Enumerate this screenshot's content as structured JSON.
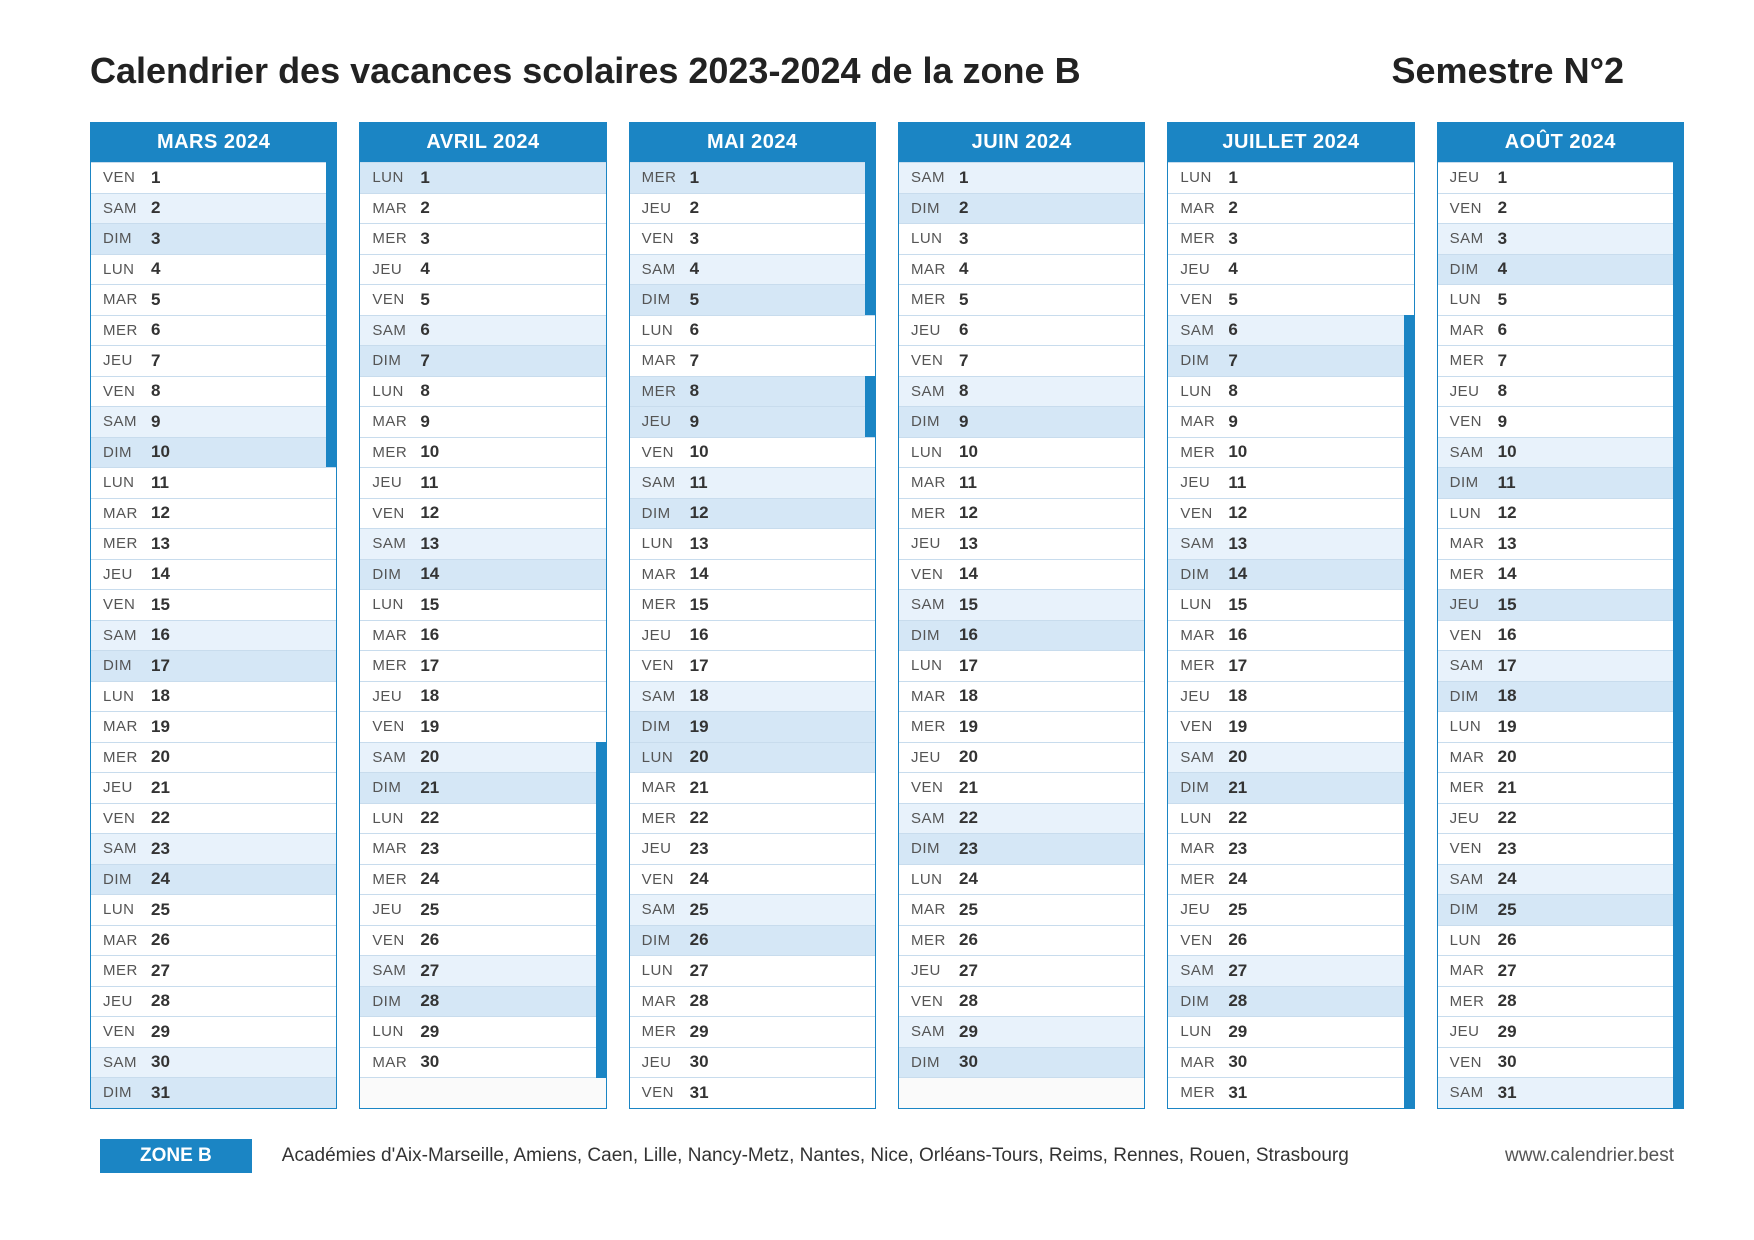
{
  "colors": {
    "accent": "#1b85c4",
    "sat_bg": "#e8f2fb",
    "sun_bg": "#d5e7f6",
    "border": "#c8dced",
    "text": "#333333",
    "wd_text": "#555555"
  },
  "header": {
    "title": "Calendrier des vacances scolaires 2023-2024 de la zone B",
    "semester": "Semestre N°2"
  },
  "footer": {
    "zone_label": "ZONE B",
    "academies": "Académies d'Aix-Marseille, Amiens, Caen, Lille, Nancy-Metz, Nantes, Nice, Orléans-Tours, Reims, Rennes, Rouen, Strasbourg",
    "site": "www.calendrier.best"
  },
  "max_days": 31,
  "months": [
    {
      "name": "MARS 2024",
      "days": [
        {
          "wd": "VEN",
          "n": 1,
          "m": true
        },
        {
          "wd": "SAM",
          "n": 2,
          "m": true
        },
        {
          "wd": "DIM",
          "n": 3,
          "m": true
        },
        {
          "wd": "LUN",
          "n": 4,
          "m": true
        },
        {
          "wd": "MAR",
          "n": 5,
          "m": true
        },
        {
          "wd": "MER",
          "n": 6,
          "m": true
        },
        {
          "wd": "JEU",
          "n": 7,
          "m": true
        },
        {
          "wd": "VEN",
          "n": 8,
          "m": true
        },
        {
          "wd": "SAM",
          "n": 9,
          "m": true
        },
        {
          "wd": "DIM",
          "n": 10,
          "m": true
        },
        {
          "wd": "LUN",
          "n": 11
        },
        {
          "wd": "MAR",
          "n": 12
        },
        {
          "wd": "MER",
          "n": 13
        },
        {
          "wd": "JEU",
          "n": 14
        },
        {
          "wd": "VEN",
          "n": 15
        },
        {
          "wd": "SAM",
          "n": 16
        },
        {
          "wd": "DIM",
          "n": 17
        },
        {
          "wd": "LUN",
          "n": 18
        },
        {
          "wd": "MAR",
          "n": 19
        },
        {
          "wd": "MER",
          "n": 20
        },
        {
          "wd": "JEU",
          "n": 21
        },
        {
          "wd": "VEN",
          "n": 22
        },
        {
          "wd": "SAM",
          "n": 23
        },
        {
          "wd": "DIM",
          "n": 24
        },
        {
          "wd": "LUN",
          "n": 25
        },
        {
          "wd": "MAR",
          "n": 26
        },
        {
          "wd": "MER",
          "n": 27
        },
        {
          "wd": "JEU",
          "n": 28
        },
        {
          "wd": "VEN",
          "n": 29
        },
        {
          "wd": "SAM",
          "n": 30
        },
        {
          "wd": "DIM",
          "n": 31
        }
      ]
    },
    {
      "name": "AVRIL 2024",
      "days": [
        {
          "wd": "LUN",
          "n": 1,
          "hol": true
        },
        {
          "wd": "MAR",
          "n": 2
        },
        {
          "wd": "MER",
          "n": 3
        },
        {
          "wd": "JEU",
          "n": 4
        },
        {
          "wd": "VEN",
          "n": 5
        },
        {
          "wd": "SAM",
          "n": 6
        },
        {
          "wd": "DIM",
          "n": 7
        },
        {
          "wd": "LUN",
          "n": 8
        },
        {
          "wd": "MAR",
          "n": 9
        },
        {
          "wd": "MER",
          "n": 10
        },
        {
          "wd": "JEU",
          "n": 11
        },
        {
          "wd": "VEN",
          "n": 12
        },
        {
          "wd": "SAM",
          "n": 13
        },
        {
          "wd": "DIM",
          "n": 14
        },
        {
          "wd": "LUN",
          "n": 15
        },
        {
          "wd": "MAR",
          "n": 16
        },
        {
          "wd": "MER",
          "n": 17
        },
        {
          "wd": "JEU",
          "n": 18
        },
        {
          "wd": "VEN",
          "n": 19
        },
        {
          "wd": "SAM",
          "n": 20,
          "m": true
        },
        {
          "wd": "DIM",
          "n": 21,
          "m": true
        },
        {
          "wd": "LUN",
          "n": 22,
          "m": true
        },
        {
          "wd": "MAR",
          "n": 23,
          "m": true
        },
        {
          "wd": "MER",
          "n": 24,
          "m": true
        },
        {
          "wd": "JEU",
          "n": 25,
          "m": true
        },
        {
          "wd": "VEN",
          "n": 26,
          "m": true
        },
        {
          "wd": "SAM",
          "n": 27,
          "m": true
        },
        {
          "wd": "DIM",
          "n": 28,
          "m": true
        },
        {
          "wd": "LUN",
          "n": 29,
          "m": true
        },
        {
          "wd": "MAR",
          "n": 30,
          "m": true
        }
      ]
    },
    {
      "name": "MAI 2024",
      "days": [
        {
          "wd": "MER",
          "n": 1,
          "hol": true,
          "m": true
        },
        {
          "wd": "JEU",
          "n": 2,
          "m": true
        },
        {
          "wd": "VEN",
          "n": 3,
          "m": true
        },
        {
          "wd": "SAM",
          "n": 4,
          "m": true
        },
        {
          "wd": "DIM",
          "n": 5,
          "m": true
        },
        {
          "wd": "LUN",
          "n": 6
        },
        {
          "wd": "MAR",
          "n": 7
        },
        {
          "wd": "MER",
          "n": 8,
          "hol": true,
          "m": true
        },
        {
          "wd": "JEU",
          "n": 9,
          "hol": true,
          "m": true
        },
        {
          "wd": "VEN",
          "n": 10
        },
        {
          "wd": "SAM",
          "n": 11
        },
        {
          "wd": "DIM",
          "n": 12
        },
        {
          "wd": "LUN",
          "n": 13
        },
        {
          "wd": "MAR",
          "n": 14
        },
        {
          "wd": "MER",
          "n": 15
        },
        {
          "wd": "JEU",
          "n": 16
        },
        {
          "wd": "VEN",
          "n": 17
        },
        {
          "wd": "SAM",
          "n": 18
        },
        {
          "wd": "DIM",
          "n": 19,
          "hol": true
        },
        {
          "wd": "LUN",
          "n": 20,
          "hol": true
        },
        {
          "wd": "MAR",
          "n": 21
        },
        {
          "wd": "MER",
          "n": 22
        },
        {
          "wd": "JEU",
          "n": 23
        },
        {
          "wd": "VEN",
          "n": 24
        },
        {
          "wd": "SAM",
          "n": 25
        },
        {
          "wd": "DIM",
          "n": 26
        },
        {
          "wd": "LUN",
          "n": 27
        },
        {
          "wd": "MAR",
          "n": 28
        },
        {
          "wd": "MER",
          "n": 29
        },
        {
          "wd": "JEU",
          "n": 30
        },
        {
          "wd": "VEN",
          "n": 31
        }
      ]
    },
    {
      "name": "JUIN 2024",
      "days": [
        {
          "wd": "SAM",
          "n": 1
        },
        {
          "wd": "DIM",
          "n": 2
        },
        {
          "wd": "LUN",
          "n": 3
        },
        {
          "wd": "MAR",
          "n": 4
        },
        {
          "wd": "MER",
          "n": 5
        },
        {
          "wd": "JEU",
          "n": 6
        },
        {
          "wd": "VEN",
          "n": 7
        },
        {
          "wd": "SAM",
          "n": 8
        },
        {
          "wd": "DIM",
          "n": 9
        },
        {
          "wd": "LUN",
          "n": 10
        },
        {
          "wd": "MAR",
          "n": 11
        },
        {
          "wd": "MER",
          "n": 12
        },
        {
          "wd": "JEU",
          "n": 13
        },
        {
          "wd": "VEN",
          "n": 14
        },
        {
          "wd": "SAM",
          "n": 15
        },
        {
          "wd": "DIM",
          "n": 16
        },
        {
          "wd": "LUN",
          "n": 17
        },
        {
          "wd": "MAR",
          "n": 18
        },
        {
          "wd": "MER",
          "n": 19
        },
        {
          "wd": "JEU",
          "n": 20
        },
        {
          "wd": "VEN",
          "n": 21
        },
        {
          "wd": "SAM",
          "n": 22
        },
        {
          "wd": "DIM",
          "n": 23
        },
        {
          "wd": "LUN",
          "n": 24
        },
        {
          "wd": "MAR",
          "n": 25
        },
        {
          "wd": "MER",
          "n": 26
        },
        {
          "wd": "JEU",
          "n": 27
        },
        {
          "wd": "VEN",
          "n": 28
        },
        {
          "wd": "SAM",
          "n": 29
        },
        {
          "wd": "DIM",
          "n": 30
        }
      ]
    },
    {
      "name": "JUILLET 2024",
      "days": [
        {
          "wd": "LUN",
          "n": 1
        },
        {
          "wd": "MAR",
          "n": 2
        },
        {
          "wd": "MER",
          "n": 3
        },
        {
          "wd": "JEU",
          "n": 4
        },
        {
          "wd": "VEN",
          "n": 5
        },
        {
          "wd": "SAM",
          "n": 6,
          "m": true
        },
        {
          "wd": "DIM",
          "n": 7,
          "m": true
        },
        {
          "wd": "LUN",
          "n": 8,
          "m": true
        },
        {
          "wd": "MAR",
          "n": 9,
          "m": true
        },
        {
          "wd": "MER",
          "n": 10,
          "m": true
        },
        {
          "wd": "JEU",
          "n": 11,
          "m": true
        },
        {
          "wd": "VEN",
          "n": 12,
          "m": true
        },
        {
          "wd": "SAM",
          "n": 13,
          "m": true
        },
        {
          "wd": "DIM",
          "n": 14,
          "hol": true,
          "m": true
        },
        {
          "wd": "LUN",
          "n": 15,
          "m": true
        },
        {
          "wd": "MAR",
          "n": 16,
          "m": true
        },
        {
          "wd": "MER",
          "n": 17,
          "m": true
        },
        {
          "wd": "JEU",
          "n": 18,
          "m": true
        },
        {
          "wd": "VEN",
          "n": 19,
          "m": true
        },
        {
          "wd": "SAM",
          "n": 20,
          "m": true
        },
        {
          "wd": "DIM",
          "n": 21,
          "m": true
        },
        {
          "wd": "LUN",
          "n": 22,
          "m": true
        },
        {
          "wd": "MAR",
          "n": 23,
          "m": true
        },
        {
          "wd": "MER",
          "n": 24,
          "m": true
        },
        {
          "wd": "JEU",
          "n": 25,
          "m": true
        },
        {
          "wd": "VEN",
          "n": 26,
          "m": true
        },
        {
          "wd": "SAM",
          "n": 27,
          "m": true
        },
        {
          "wd": "DIM",
          "n": 28,
          "m": true
        },
        {
          "wd": "LUN",
          "n": 29,
          "m": true
        },
        {
          "wd": "MAR",
          "n": 30,
          "m": true
        },
        {
          "wd": "MER",
          "n": 31,
          "m": true
        }
      ]
    },
    {
      "name": "AOÛT 2024",
      "days": [
        {
          "wd": "JEU",
          "n": 1,
          "m": true
        },
        {
          "wd": "VEN",
          "n": 2,
          "m": true
        },
        {
          "wd": "SAM",
          "n": 3,
          "m": true
        },
        {
          "wd": "DIM",
          "n": 4,
          "m": true
        },
        {
          "wd": "LUN",
          "n": 5,
          "m": true
        },
        {
          "wd": "MAR",
          "n": 6,
          "m": true
        },
        {
          "wd": "MER",
          "n": 7,
          "m": true
        },
        {
          "wd": "JEU",
          "n": 8,
          "m": true
        },
        {
          "wd": "VEN",
          "n": 9,
          "m": true
        },
        {
          "wd": "SAM",
          "n": 10,
          "m": true
        },
        {
          "wd": "DIM",
          "n": 11,
          "m": true
        },
        {
          "wd": "LUN",
          "n": 12,
          "m": true
        },
        {
          "wd": "MAR",
          "n": 13,
          "m": true
        },
        {
          "wd": "MER",
          "n": 14,
          "m": true
        },
        {
          "wd": "JEU",
          "n": 15,
          "hol": true,
          "m": true
        },
        {
          "wd": "VEN",
          "n": 16,
          "m": true
        },
        {
          "wd": "SAM",
          "n": 17,
          "m": true
        },
        {
          "wd": "DIM",
          "n": 18,
          "m": true
        },
        {
          "wd": "LUN",
          "n": 19,
          "m": true
        },
        {
          "wd": "MAR",
          "n": 20,
          "m": true
        },
        {
          "wd": "MER",
          "n": 21,
          "m": true
        },
        {
          "wd": "JEU",
          "n": 22,
          "m": true
        },
        {
          "wd": "VEN",
          "n": 23,
          "m": true
        },
        {
          "wd": "SAM",
          "n": 24,
          "m": true
        },
        {
          "wd": "DIM",
          "n": 25,
          "m": true
        },
        {
          "wd": "LUN",
          "n": 26,
          "m": true
        },
        {
          "wd": "MAR",
          "n": 27,
          "m": true
        },
        {
          "wd": "MER",
          "n": 28,
          "m": true
        },
        {
          "wd": "JEU",
          "n": 29,
          "m": true
        },
        {
          "wd": "VEN",
          "n": 30,
          "m": true
        },
        {
          "wd": "SAM",
          "n": 31,
          "m": true
        }
      ]
    }
  ]
}
